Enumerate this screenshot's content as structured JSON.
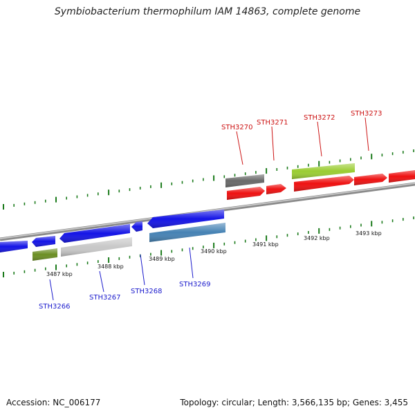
{
  "title": "Symbiobacterium thermophilum IAM 14863, complete genome",
  "footer": {
    "accession": "Accession: NC_006177",
    "info": "Topology: circular; Length: 3,566,135 bp; Genes: 3,455"
  },
  "colors": {
    "blue": "#1414e6",
    "red": "#ee1111",
    "olive": "#6b8e23",
    "lightgray": "#c8c8c8",
    "steelblue": "#4682b4",
    "darkgray": "#696969",
    "lime": "#9acd32",
    "backbone": "#8a8a8a",
    "ticks": "#1a7a1a",
    "label_top": "#cc1111",
    "label_bottom": "#1a1acc"
  },
  "scale": {
    "ticks_kbp": [
      3487,
      3488,
      3489,
      3490,
      3491,
      3492,
      3493
    ],
    "tick_labels": [
      "3487 kbp",
      "3488 kbp",
      "3489 kbp",
      "3490 kbp",
      "3491 kbp",
      "3492 kbp",
      "3493 kbp"
    ]
  },
  "genes_top_labels": [
    {
      "name": "STH3270"
    },
    {
      "name": "STH3271"
    },
    {
      "name": "STH3272"
    },
    {
      "name": "STH3273"
    }
  ],
  "genes_bottom_labels": [
    {
      "name": "STH3266"
    },
    {
      "name": "STH3267"
    },
    {
      "name": "STH3268"
    },
    {
      "name": "STH3269"
    }
  ]
}
